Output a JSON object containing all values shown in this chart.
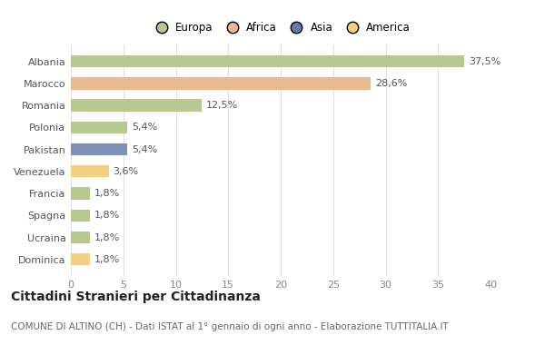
{
  "categories": [
    "Albania",
    "Marocco",
    "Romania",
    "Polonia",
    "Pakistan",
    "Venezuela",
    "Francia",
    "Spagna",
    "Ucraina",
    "Dominica"
  ],
  "values": [
    37.5,
    28.6,
    12.5,
    5.4,
    5.4,
    3.6,
    1.8,
    1.8,
    1.8,
    1.8
  ],
  "labels": [
    "37,5%",
    "28,6%",
    "12,5%",
    "5,4%",
    "5,4%",
    "3,6%",
    "1,8%",
    "1,8%",
    "1,8%",
    "1,8%"
  ],
  "bar_colors": [
    "#b5c98e",
    "#e8b98a",
    "#b5c98e",
    "#b5c98e",
    "#8090b8",
    "#f5d080",
    "#b5c98e",
    "#b5c98e",
    "#b5c98e",
    "#f5d080"
  ],
  "legend_labels": [
    "Europa",
    "Africa",
    "Asia",
    "America"
  ],
  "legend_colors": [
    "#b5c98e",
    "#e8b98a",
    "#6878b0",
    "#f5d080"
  ],
  "title": "Cittadini Stranieri per Cittadinanza",
  "subtitle": "COMUNE DI ALTINO (CH) - Dati ISTAT al 1° gennaio di ogni anno - Elaborazione TUTTITALIA.IT",
  "xlim": [
    0,
    40
  ],
  "xticks": [
    0,
    5,
    10,
    15,
    20,
    25,
    30,
    35,
    40
  ],
  "background_color": "#ffffff",
  "grid_color": "#e0e0e0",
  "bar_height": 0.55,
  "label_fontsize": 8,
  "ytick_fontsize": 8,
  "xtick_fontsize": 8,
  "legend_fontsize": 8.5,
  "title_fontsize": 10,
  "subtitle_fontsize": 7.5
}
